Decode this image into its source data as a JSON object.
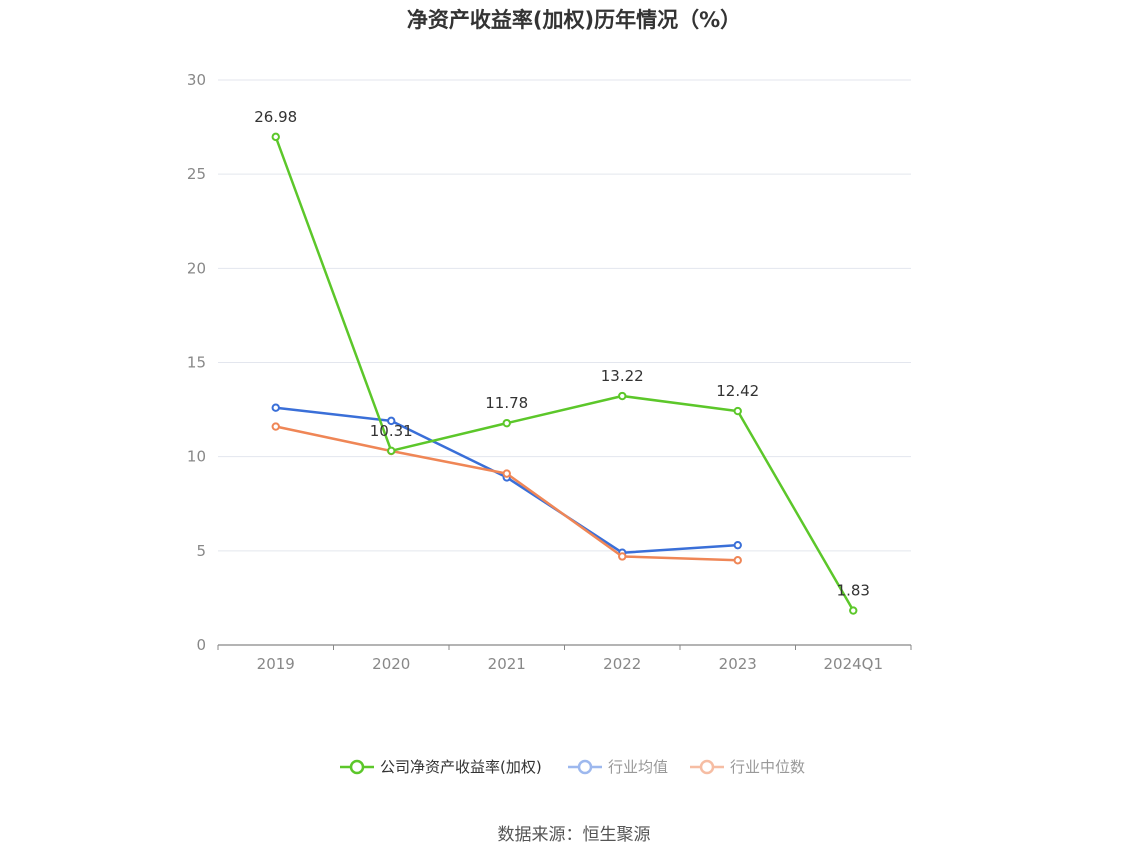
{
  "chart_data": {
    "type": "line",
    "title": "净资产收益率(加权)历年情况（%）",
    "categories": [
      "2019",
      "2020",
      "2021",
      "2022",
      "2023",
      "2024Q1"
    ],
    "ylim": [
      0,
      30
    ],
    "yticks": [
      0,
      5,
      10,
      15,
      20,
      25,
      30
    ],
    "grid": true,
    "legend_position": "bottom",
    "series": [
      {
        "name": "公司净资产收益率(加权)",
        "color": "#5cc72a",
        "values": [
          26.98,
          10.31,
          11.78,
          13.22,
          12.42,
          1.83
        ],
        "labels": [
          "26.98",
          "10.31",
          "11.78",
          "13.22",
          "12.42",
          "1.83"
        ]
      },
      {
        "name": "行业均值",
        "color": "#3a6fd8",
        "values": [
          12.6,
          11.9,
          8.9,
          4.9,
          5.3,
          null
        ]
      },
      {
        "name": "行业中位数",
        "color": "#ef8656",
        "values": [
          11.6,
          10.3,
          9.1,
          4.7,
          4.5,
          null
        ]
      }
    ]
  },
  "source": "数据来源：恒生聚源"
}
